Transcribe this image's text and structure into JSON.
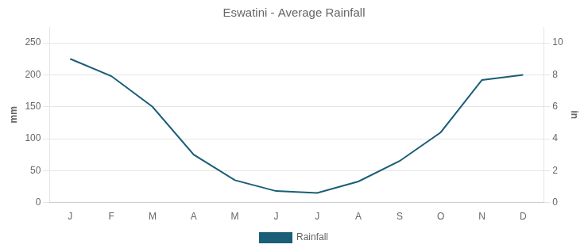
{
  "chart_data": {
    "type": "line",
    "title": "Eswatini - Average Rainfall",
    "categories": [
      "J",
      "F",
      "M",
      "A",
      "M",
      "J",
      "J",
      "A",
      "S",
      "O",
      "N",
      "D"
    ],
    "series": [
      {
        "name": "Rainfall",
        "color": "#1a5e78",
        "values": [
          225,
          198,
          150,
          75,
          35,
          18,
          15,
          33,
          65,
          110,
          192,
          200
        ]
      }
    ],
    "ylabel": "mm",
    "y2label": "in",
    "ylim": [
      0,
      275
    ],
    "yticks": [
      0,
      50,
      100,
      150,
      200,
      250
    ],
    "y2lim": [
      0,
      11
    ],
    "y2ticks": [
      0,
      2,
      4,
      6,
      8,
      10
    ],
    "grid": true,
    "legend": "bottom"
  }
}
